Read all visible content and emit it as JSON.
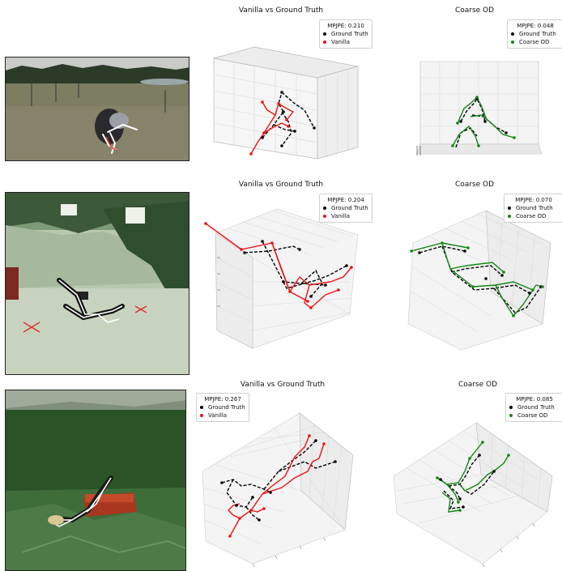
{
  "rows": [
    {
      "photo": {
        "scene": "outdoor-meadow"
      },
      "vanilla": {
        "title": "Vanilla vs Ground Truth",
        "mpjpe": "MPJPE: 0.210",
        "legend": [
          "Ground Truth",
          "Vanilla"
        ]
      },
      "coarse": {
        "title": "Coarse OD",
        "mpjpe": "MPJPE: 0.048",
        "legend": [
          "Ground Truth",
          "Coarse OD"
        ]
      }
    },
    {
      "photo": {
        "scene": "studio-breakdance"
      },
      "vanilla": {
        "title": "Vanilla vs Ground Truth",
        "mpjpe": "MPJPE: 0.204",
        "legend": [
          "Ground Truth",
          "Vanilla"
        ]
      },
      "coarse": {
        "title": "Coarse OD",
        "mpjpe": "MPJPE: 0.070",
        "legend": [
          "Ground Truth",
          "Coarse OD"
        ]
      }
    },
    {
      "photo": {
        "scene": "greenscreen-floor"
      },
      "vanilla": {
        "title": "Vanilla vs Ground Truth",
        "mpjpe": "MPJPE: 0.267",
        "legend": [
          "Ground Truth",
          "Vanilla"
        ]
      },
      "coarse": {
        "title": "Coarse OD",
        "mpjpe": "MPJPE: 0.085",
        "legend": [
          "Ground Truth",
          "Coarse OD"
        ]
      }
    }
  ],
  "colors": {
    "ground_truth": "#000000",
    "vanilla": "#ee1111",
    "coarse": "#118811"
  }
}
